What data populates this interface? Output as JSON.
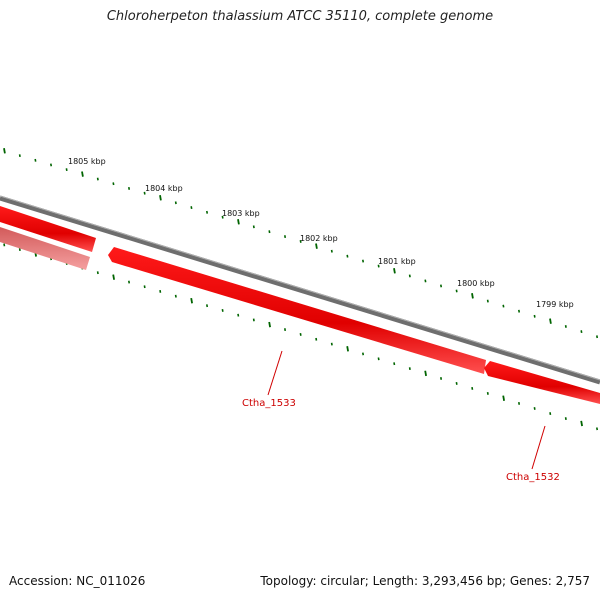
{
  "title": "Chloroherpeton thalassium ATCC 35110, complete genome",
  "footer": {
    "accession": "Accession: NC_011026",
    "stats": "Topology: circular; Length: 3,293,456 bp; Genes: 2,757"
  },
  "scale": {
    "tick_labels": [
      "1805 kbp",
      "1804 kbp",
      "1803 kbp",
      "1802 kbp",
      "1801 kbp",
      "1800 kbp",
      "1799 kbp"
    ],
    "tick_color": "#006400"
  },
  "genes": [
    {
      "label": "Ctha_1533",
      "color": "#cc0000"
    },
    {
      "label": "Ctha_1532",
      "color": "#cc0000"
    }
  ],
  "colors": {
    "backbone": "#6e6e6e",
    "gene_fill": "#e60000",
    "gene_fill_faded": "#e87878"
  }
}
